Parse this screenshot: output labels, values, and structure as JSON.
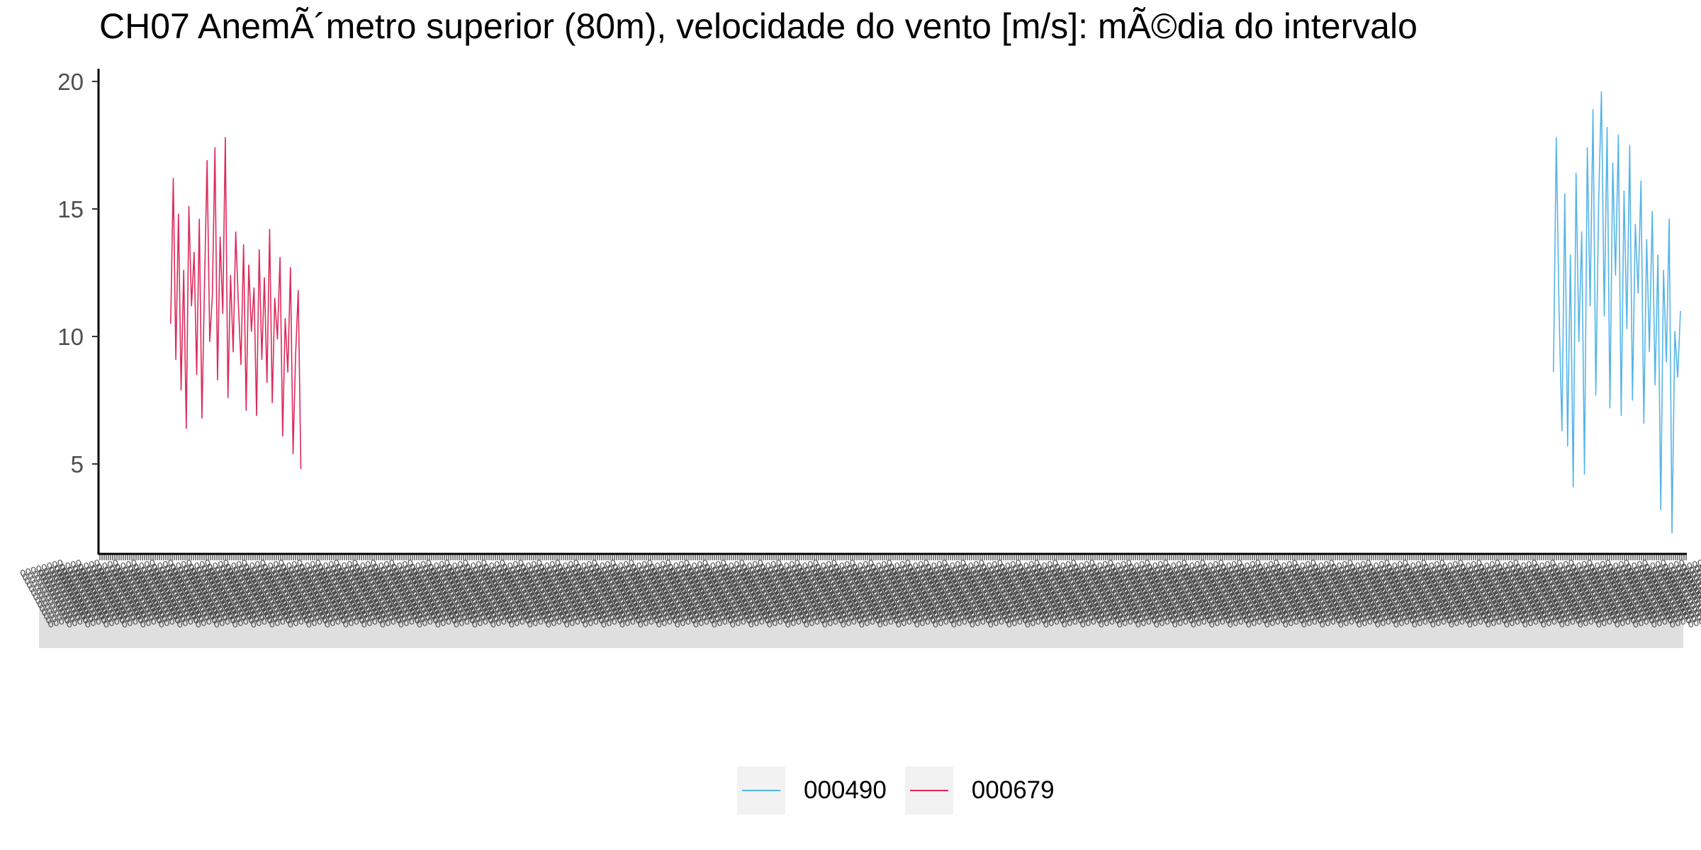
{
  "chart_data": {
    "type": "line",
    "title": "CH07 AnemÃ´metro superior (80m), velocidade do vento [m/s]: mÃ©dia do intervalo",
    "xlabel": "",
    "ylabel": "",
    "ylim": [
      1.5,
      20.5
    ],
    "y_ticks": [
      5,
      10,
      15,
      20
    ],
    "x_tick_labels_overplotted": true,
    "legend_position": "bottom",
    "grid": false,
    "series": [
      {
        "name": "000679",
        "color": "#DC2A5A",
        "x_range": [
          0.045,
          0.127
        ],
        "values": [
          10.5,
          16.2,
          9.1,
          14.8,
          7.9,
          12.6,
          6.4,
          15.1,
          11.2,
          13.3,
          8.5,
          14.6,
          6.8,
          12.1,
          16.9,
          9.8,
          11.6,
          17.4,
          8.3,
          13.9,
          10.9,
          17.8,
          7.6,
          12.4,
          9.4,
          14.1,
          11.3,
          8.9,
          13.6,
          7.1,
          12.8,
          10.2,
          11.9,
          6.9,
          13.4,
          9.1,
          12.3,
          8.2,
          14.2,
          7.4,
          11.5,
          9.9,
          13.1,
          6.1,
          10.7,
          8.6,
          12.7,
          5.4,
          9.3,
          11.8,
          4.8
        ]
      },
      {
        "name": "000490",
        "color": "#56B4E9",
        "x_range": [
          0.916,
          0.996
        ],
        "values": [
          8.6,
          17.8,
          10.9,
          6.3,
          15.6,
          5.7,
          13.2,
          4.1,
          16.4,
          9.8,
          14.1,
          4.6,
          17.4,
          11.2,
          18.9,
          7.7,
          15.3,
          19.6,
          10.8,
          18.2,
          7.2,
          16.8,
          12.4,
          17.9,
          6.9,
          15.7,
          10.3,
          17.5,
          7.5,
          14.4,
          11.7,
          16.1,
          6.6,
          13.8,
          9.4,
          14.9,
          8.1,
          13.2,
          3.2,
          12.6,
          9.0,
          14.6,
          2.3,
          10.2,
          8.4,
          11.0
        ]
      }
    ]
  }
}
